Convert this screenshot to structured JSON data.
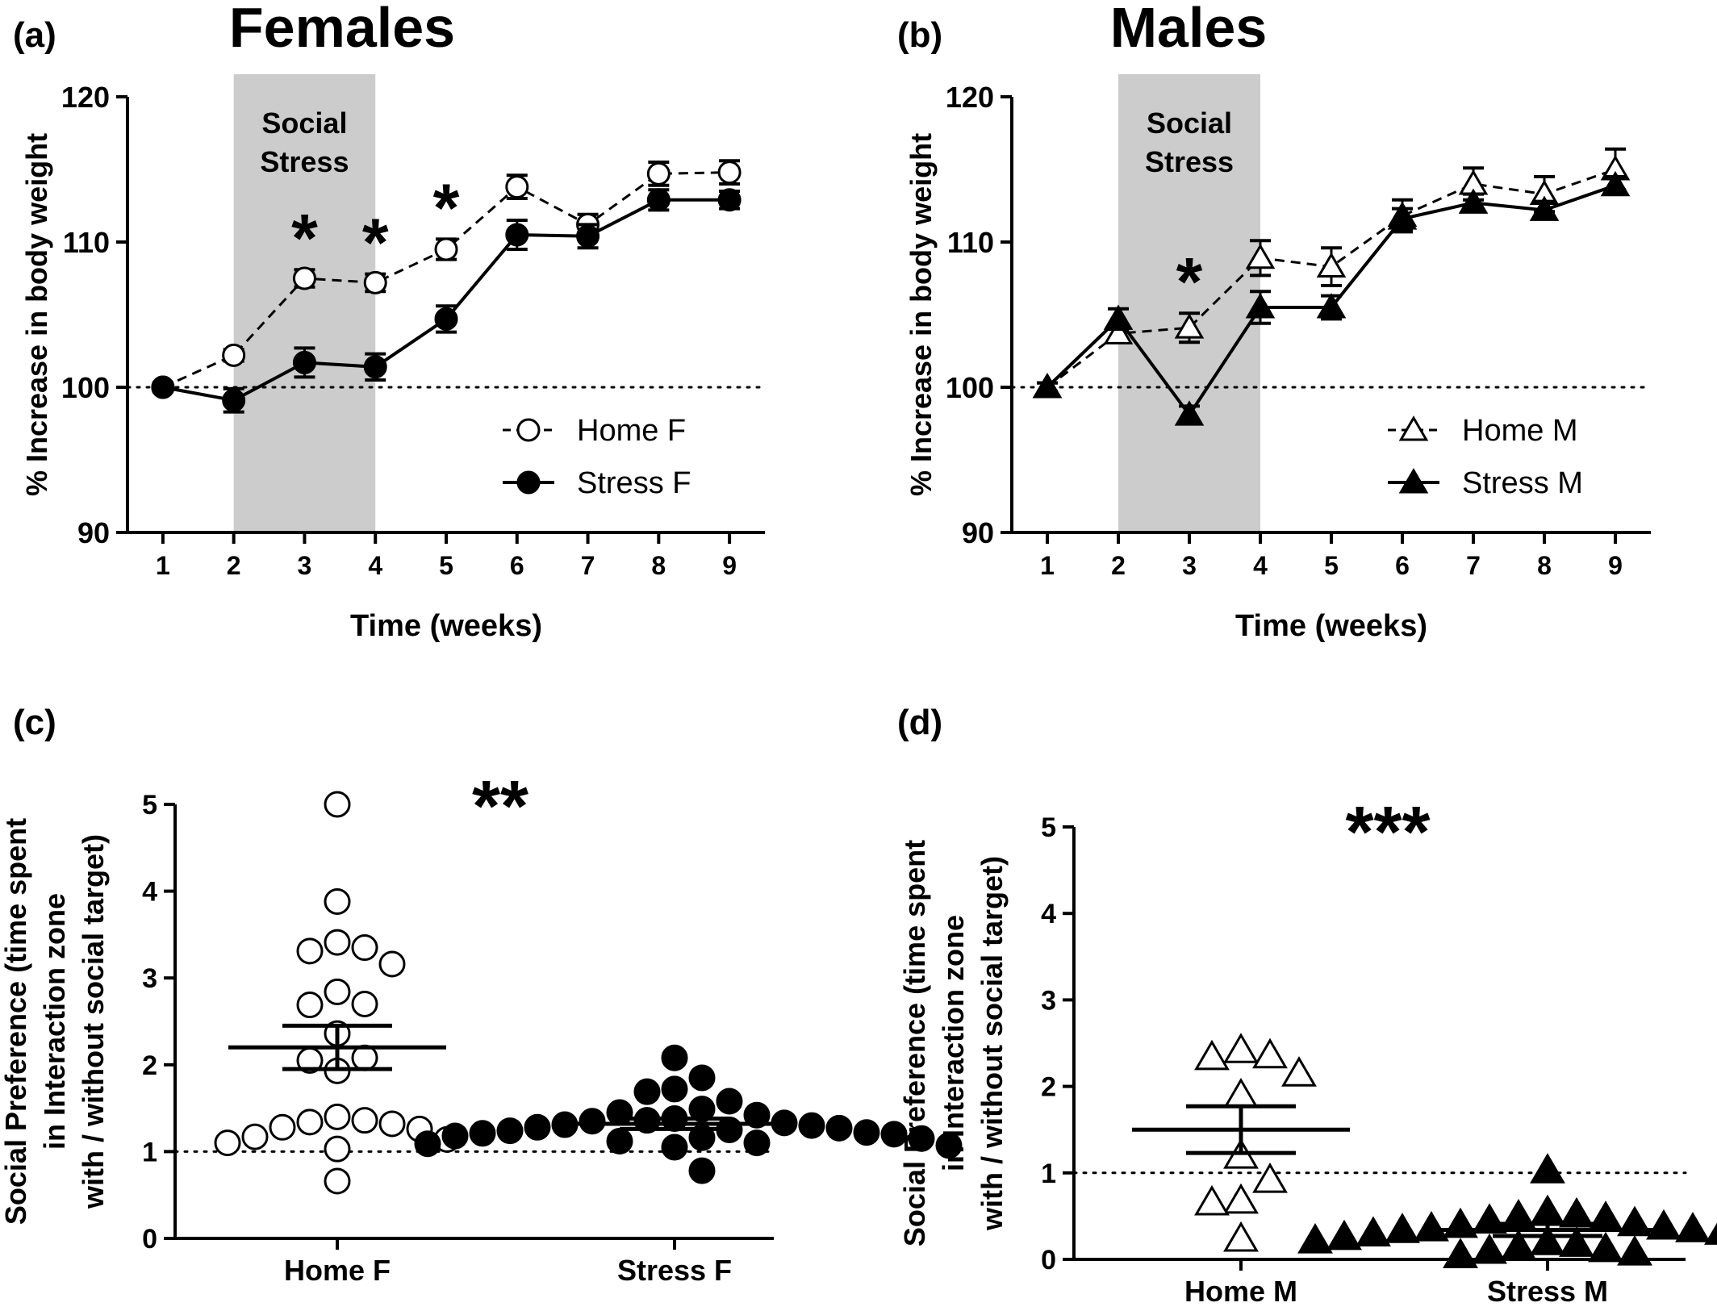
{
  "chart_data": [
    {
      "panel": "(a)",
      "title": "Females",
      "type": "line",
      "xlabel": "Time (weeks)",
      "ylabel": "% Increase in body weight",
      "x": [
        1,
        2,
        3,
        4,
        5,
        6,
        7,
        8,
        9
      ],
      "xlim": [
        0.5,
        9.5
      ],
      "ylim": [
        90,
        120
      ],
      "yticks": [
        90,
        100,
        110,
        120
      ],
      "reference_line": 100,
      "shaded_region": {
        "x": [
          2,
          4
        ],
        "label": [
          "Social",
          "Stress"
        ]
      },
      "significance": [
        {
          "x": 3,
          "label": "*"
        },
        {
          "x": 4,
          "label": "*"
        },
        {
          "x": 5,
          "label": "*"
        }
      ],
      "legend_position": "bottom-right",
      "series": [
        {
          "name": "Home F",
          "marker": "circle-open",
          "line": "dashed",
          "values": [
            100,
            102.2,
            107.5,
            107.2,
            109.5,
            113.8,
            111.2,
            114.7,
            114.8
          ],
          "errors": [
            0.3,
            0.4,
            0.6,
            0.6,
            0.7,
            0.8,
            0.7,
            0.8,
            0.8
          ]
        },
        {
          "name": "Stress F",
          "marker": "circle-filled",
          "line": "solid",
          "values": [
            100,
            99.1,
            101.7,
            101.4,
            104.7,
            110.5,
            110.4,
            112.9,
            112.9
          ],
          "errors": [
            0.3,
            0.8,
            1.0,
            0.9,
            0.9,
            1.0,
            0.8,
            0.7,
            0.6
          ]
        }
      ]
    },
    {
      "panel": "(b)",
      "title": "Males",
      "type": "line",
      "xlabel": "Time (weeks)",
      "ylabel": "% Increase in body weight",
      "x": [
        1,
        2,
        3,
        4,
        5,
        6,
        7,
        8,
        9
      ],
      "xlim": [
        0.5,
        9.5
      ],
      "ylim": [
        90,
        120
      ],
      "yticks": [
        90,
        100,
        110,
        120
      ],
      "reference_line": 100,
      "shaded_region": {
        "x": [
          2,
          4
        ],
        "label": [
          "Social",
          "Stress"
        ]
      },
      "significance": [
        {
          "x": 3,
          "label": "*"
        }
      ],
      "legend_position": "bottom-right",
      "series": [
        {
          "name": "Home M",
          "marker": "triangle-open",
          "line": "dashed",
          "values": [
            100,
            103.7,
            104.1,
            108.9,
            108.3,
            111.8,
            114.0,
            113.3,
            115.0
          ],
          "errors": [
            0.3,
            0.5,
            1.0,
            1.2,
            1.3,
            1.1,
            1.1,
            1.2,
            1.4
          ]
        },
        {
          "name": "Stress M",
          "marker": "triangle-filled",
          "line": "solid",
          "values": [
            100,
            104.7,
            98.1,
            105.5,
            105.5,
            111.6,
            112.7,
            112.2,
            113.9
          ],
          "errors": [
            0.3,
            0.7,
            0.6,
            1.1,
            0.8,
            0.7,
            0.6,
            0.6,
            0.6
          ]
        }
      ]
    },
    {
      "panel": "(c)",
      "type": "scatter",
      "ylabel": "Social Preference (time spent in Interaction zone with / without social target)",
      "ylabel_lines": [
        "Social Preference (time spent",
        "in Interaction zone",
        "with / without social target)"
      ],
      "categories": [
        "Home F",
        "Stress F"
      ],
      "ylim": [
        0,
        5
      ],
      "yticks": [
        0,
        1,
        2,
        3,
        4,
        5
      ],
      "reference_line": 1,
      "significance": "**",
      "groups": [
        {
          "name": "Home F",
          "marker": "circle-open",
          "mean": 2.2,
          "sem": 0.25,
          "points": [
            5.0,
            3.88,
            3.41,
            3.35,
            3.31,
            3.16,
            2.84,
            2.7,
            2.69,
            2.36,
            2.08,
            2.05,
            1.93,
            1.4,
            1.36,
            1.34,
            1.32,
            1.28,
            1.26,
            1.17,
            1.14,
            1.1,
            1.03,
            0.66
          ]
        },
        {
          "name": "Stress F",
          "marker": "circle-filled",
          "mean": 1.32,
          "sem": 0.06,
          "points": [
            2.08,
            1.85,
            1.72,
            1.69,
            1.58,
            1.49,
            1.45,
            1.42,
            1.38,
            1.36,
            1.35,
            1.33,
            1.31,
            1.3,
            1.28,
            1.27,
            1.25,
            1.24,
            1.22,
            1.21,
            1.2,
            1.18,
            1.16,
            1.15,
            1.12,
            1.1,
            1.09,
            1.07,
            1.05,
            0.78
          ]
        }
      ]
    },
    {
      "panel": "(d)",
      "type": "scatter",
      "ylabel": "Social Preference (time spent in Interaction zone with / without social target)",
      "ylabel_lines": [
        "Social Preference (time spent",
        "in Interaction zone",
        "with / without social target)"
      ],
      "categories": [
        "Home M",
        "Stress M"
      ],
      "ylim": [
        0,
        5
      ],
      "yticks": [
        0,
        1,
        2,
        3,
        4,
        5
      ],
      "reference_line": 1,
      "significance": "***",
      "groups": [
        {
          "name": "Home M",
          "marker": "triangle-open",
          "mean": 1.5,
          "sem": 0.27,
          "points": [
            2.42,
            2.36,
            2.34,
            2.15,
            1.9,
            1.2,
            0.92,
            0.68,
            0.66,
            0.24
          ]
        },
        {
          "name": "Stress M",
          "marker": "triangle-filled",
          "mean": 0.34,
          "sem": 0.07,
          "points": [
            1.03,
            0.55,
            0.52,
            0.5,
            0.48,
            0.45,
            0.42,
            0.4,
            0.38,
            0.36,
            0.35,
            0.34,
            0.32,
            0.3,
            0.28,
            0.26,
            0.25,
            0.22,
            0.2,
            0.18,
            0.15,
            0.12,
            0.1,
            0.08,
            0.05
          ]
        }
      ]
    }
  ]
}
